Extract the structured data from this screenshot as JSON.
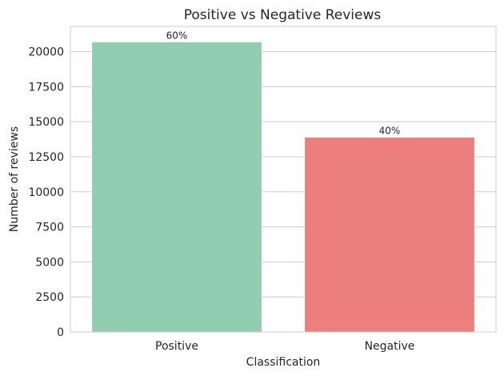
{
  "chart_data": {
    "type": "bar",
    "title": "Positive vs Negative Reviews",
    "xlabel": "Classification",
    "ylabel": "Number of reviews",
    "categories": [
      "Positive",
      "Negative"
    ],
    "values": [
      20700,
      13900
    ],
    "data_labels": [
      "60%",
      "40%"
    ],
    "colors": [
      "#91cdb0",
      "#ec7f7c"
    ],
    "ylim": [
      0,
      21800
    ],
    "yticks": [
      0,
      2500,
      5000,
      7500,
      10000,
      12500,
      15000,
      17500,
      20000
    ],
    "grid": true
  }
}
